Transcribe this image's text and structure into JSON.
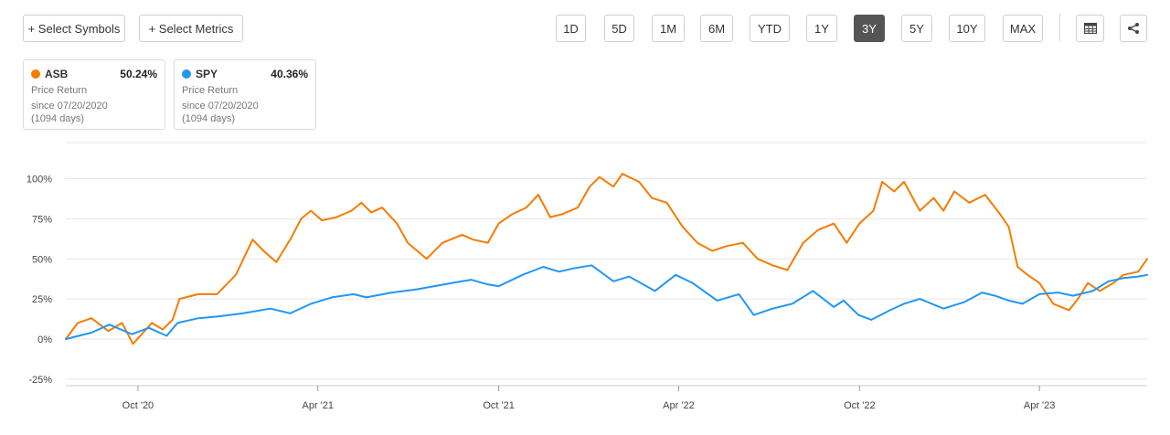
{
  "toolbar": {
    "select_symbols": "+ Select Symbols",
    "select_metrics": "+ Select Metrics",
    "ranges": [
      "1D",
      "5D",
      "1M",
      "6M",
      "YTD",
      "1Y",
      "3Y",
      "5Y",
      "10Y",
      "MAX"
    ],
    "active_range": "3Y",
    "table_icon": "table-icon",
    "share_icon": "share-icon"
  },
  "legend_cards": [
    {
      "symbol": "ASB",
      "color": "#f57c00",
      "value": "50.24%",
      "metric": "Price Return",
      "since": "since 07/20/2020",
      "days": "(1094 days)"
    },
    {
      "symbol": "SPY",
      "color": "#2196f3",
      "value": "40.36%",
      "metric": "Price Return",
      "since": "since 07/20/2020",
      "days": "(1094 days)"
    }
  ],
  "chart_data": {
    "type": "line",
    "y_unit": "%",
    "ylim": [
      -25,
      100
    ],
    "yticks": [
      -25,
      0,
      25,
      50,
      75,
      100
    ],
    "ytick_labels": [
      "-25%",
      "0%",
      "25%",
      "50%",
      "75%",
      "100%"
    ],
    "xlim": [
      "2020-07-20",
      "2023-07-19"
    ],
    "xticks": [
      "2020-10-01",
      "2021-04-01",
      "2021-10-01",
      "2022-04-01",
      "2022-10-01",
      "2023-04-01"
    ],
    "xtick_labels": [
      "Oct '20",
      "Apr '21",
      "Oct '21",
      "Apr '22",
      "Oct '22",
      "Apr '23"
    ],
    "grid": "horizontal",
    "series": [
      {
        "name": "ASB",
        "color": "#f57c00",
        "points": [
          [
            "2020-07-20",
            0
          ],
          [
            "2020-08-01",
            10
          ],
          [
            "2020-08-15",
            13
          ],
          [
            "2020-09-01",
            5
          ],
          [
            "2020-09-15",
            10
          ],
          [
            "2020-09-26",
            -3
          ],
          [
            "2020-10-15",
            10
          ],
          [
            "2020-10-26",
            6
          ],
          [
            "2020-11-05",
            12
          ],
          [
            "2020-11-12",
            25
          ],
          [
            "2020-12-01",
            28
          ],
          [
            "2020-12-20",
            28
          ],
          [
            "2021-01-08",
            40
          ],
          [
            "2021-01-25",
            62
          ],
          [
            "2021-02-05",
            55
          ],
          [
            "2021-02-18",
            48
          ],
          [
            "2021-03-05",
            63
          ],
          [
            "2021-03-15",
            75
          ],
          [
            "2021-03-25",
            80
          ],
          [
            "2021-04-05",
            74
          ],
          [
            "2021-04-20",
            76
          ],
          [
            "2021-05-05",
            80
          ],
          [
            "2021-05-15",
            85
          ],
          [
            "2021-05-25",
            79
          ],
          [
            "2021-06-05",
            82
          ],
          [
            "2021-06-20",
            72
          ],
          [
            "2021-07-01",
            60
          ],
          [
            "2021-07-20",
            50
          ],
          [
            "2021-08-05",
            60
          ],
          [
            "2021-08-25",
            65
          ],
          [
            "2021-09-05",
            62
          ],
          [
            "2021-09-20",
            60
          ],
          [
            "2021-10-01",
            72
          ],
          [
            "2021-10-15",
            78
          ],
          [
            "2021-10-29",
            82
          ],
          [
            "2021-11-10",
            90
          ],
          [
            "2021-11-22",
            76
          ],
          [
            "2021-12-05",
            78
          ],
          [
            "2021-12-20",
            82
          ],
          [
            "2022-01-01",
            95
          ],
          [
            "2022-01-11",
            101
          ],
          [
            "2022-01-25",
            95
          ],
          [
            "2022-02-03",
            103
          ],
          [
            "2022-02-20",
            98
          ],
          [
            "2022-03-05",
            88
          ],
          [
            "2022-03-20",
            85
          ],
          [
            "2022-04-05",
            70
          ],
          [
            "2022-04-20",
            60
          ],
          [
            "2022-05-05",
            55
          ],
          [
            "2022-05-20",
            58
          ],
          [
            "2022-06-05",
            60
          ],
          [
            "2022-06-20",
            50
          ],
          [
            "2022-07-05",
            46
          ],
          [
            "2022-07-20",
            43
          ],
          [
            "2022-08-05",
            60
          ],
          [
            "2022-08-20",
            68
          ],
          [
            "2022-09-05",
            72
          ],
          [
            "2022-09-18",
            60
          ],
          [
            "2022-10-01",
            72
          ],
          [
            "2022-10-15",
            80
          ],
          [
            "2022-10-24",
            98
          ],
          [
            "2022-11-05",
            92
          ],
          [
            "2022-11-15",
            98
          ],
          [
            "2022-12-01",
            80
          ],
          [
            "2022-12-15",
            88
          ],
          [
            "2022-12-25",
            80
          ],
          [
            "2023-01-05",
            92
          ],
          [
            "2023-01-20",
            85
          ],
          [
            "2023-02-05",
            90
          ],
          [
            "2023-02-20",
            78
          ],
          [
            "2023-03-01",
            70
          ],
          [
            "2023-03-10",
            45
          ],
          [
            "2023-03-20",
            40
          ],
          [
            "2023-04-01",
            35
          ],
          [
            "2023-04-15",
            22
          ],
          [
            "2023-05-01",
            18
          ],
          [
            "2023-05-10",
            25
          ],
          [
            "2023-05-20",
            35
          ],
          [
            "2023-06-01",
            30
          ],
          [
            "2023-06-15",
            35
          ],
          [
            "2023-06-25",
            40
          ],
          [
            "2023-07-10",
            42
          ],
          [
            "2023-07-19",
            50
          ]
        ]
      },
      {
        "name": "SPY",
        "color": "#2196f3",
        "points": [
          [
            "2020-07-20",
            0
          ],
          [
            "2020-08-15",
            4
          ],
          [
            "2020-09-02",
            9
          ],
          [
            "2020-09-25",
            3
          ],
          [
            "2020-10-12",
            7
          ],
          [
            "2020-10-30",
            2
          ],
          [
            "2020-11-10",
            10
          ],
          [
            "2020-12-01",
            13
          ],
          [
            "2020-12-20",
            14
          ],
          [
            "2021-01-15",
            16
          ],
          [
            "2021-02-12",
            19
          ],
          [
            "2021-03-04",
            16
          ],
          [
            "2021-03-25",
            22
          ],
          [
            "2021-04-15",
            26
          ],
          [
            "2021-05-07",
            28
          ],
          [
            "2021-05-20",
            26
          ],
          [
            "2021-06-15",
            29
          ],
          [
            "2021-07-10",
            31
          ],
          [
            "2021-08-15",
            35
          ],
          [
            "2021-09-03",
            37
          ],
          [
            "2021-09-20",
            34
          ],
          [
            "2021-10-01",
            33
          ],
          [
            "2021-10-25",
            40
          ],
          [
            "2021-11-15",
            45
          ],
          [
            "2021-12-01",
            42
          ],
          [
            "2021-12-15",
            44
          ],
          [
            "2022-01-03",
            46
          ],
          [
            "2022-01-25",
            36
          ],
          [
            "2022-02-10",
            39
          ],
          [
            "2022-03-08",
            30
          ],
          [
            "2022-03-29",
            40
          ],
          [
            "2022-04-15",
            35
          ],
          [
            "2022-05-10",
            24
          ],
          [
            "2022-06-01",
            28
          ],
          [
            "2022-06-16",
            15
          ],
          [
            "2022-07-05",
            19
          ],
          [
            "2022-07-25",
            22
          ],
          [
            "2022-08-15",
            30
          ],
          [
            "2022-09-05",
            20
          ],
          [
            "2022-09-15",
            24
          ],
          [
            "2022-09-30",
            15
          ],
          [
            "2022-10-13",
            12
          ],
          [
            "2022-11-01",
            18
          ],
          [
            "2022-11-15",
            22
          ],
          [
            "2022-12-01",
            25
          ],
          [
            "2022-12-25",
            19
          ],
          [
            "2023-01-15",
            23
          ],
          [
            "2023-02-02",
            29
          ],
          [
            "2023-02-15",
            27
          ],
          [
            "2023-03-01",
            24
          ],
          [
            "2023-03-15",
            22
          ],
          [
            "2023-04-01",
            28
          ],
          [
            "2023-04-20",
            29
          ],
          [
            "2023-05-05",
            27
          ],
          [
            "2023-05-25",
            30
          ],
          [
            "2023-06-10",
            36
          ],
          [
            "2023-06-25",
            38
          ],
          [
            "2023-07-10",
            39
          ],
          [
            "2023-07-19",
            40
          ]
        ]
      }
    ]
  }
}
